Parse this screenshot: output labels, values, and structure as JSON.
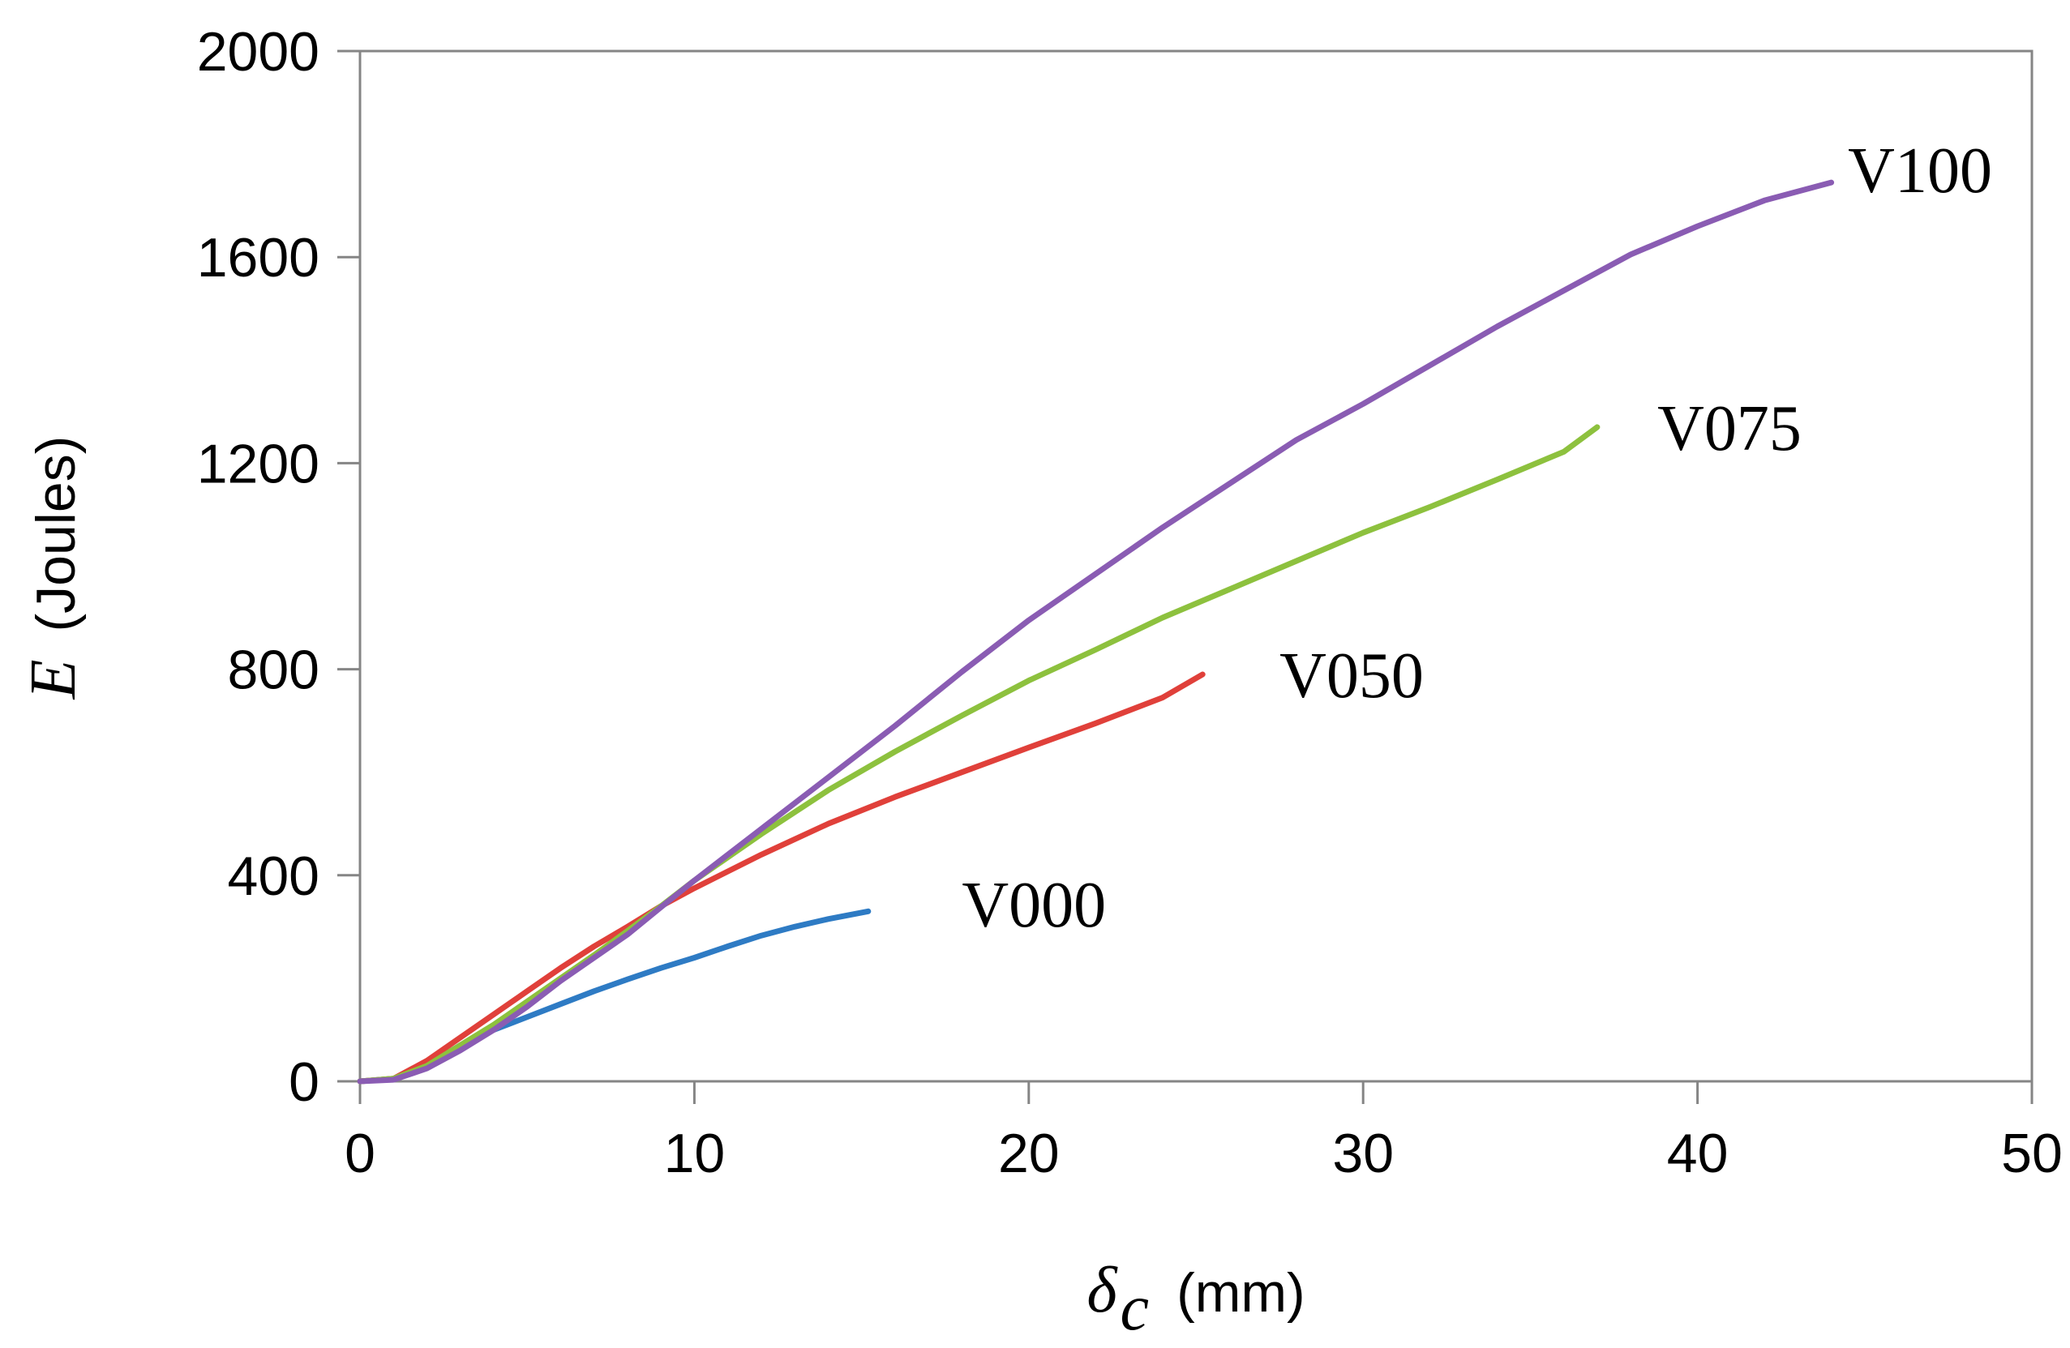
{
  "chart_data": {
    "type": "line",
    "title": "",
    "xlabel": {
      "symbol": "δ",
      "subscript": "c",
      "unit": "(mm)"
    },
    "ylabel": {
      "symbol": "E",
      "unit": "(Joules)"
    },
    "xlim": [
      0,
      50
    ],
    "ylim": [
      0,
      2000
    ],
    "xticks": [
      0,
      10,
      20,
      30,
      40,
      50
    ],
    "yticks": [
      0,
      400,
      800,
      1200,
      1600,
      2000
    ],
    "grid": false,
    "series": [
      {
        "name": "V000",
        "color": "#2E7BC4",
        "x": [
          0,
          1,
          2,
          3,
          4,
          5,
          6,
          7,
          8,
          9,
          10,
          11,
          12,
          13,
          14,
          15.2
        ],
        "y": [
          0,
          5,
          30,
          70,
          100,
          125,
          150,
          175,
          198,
          220,
          240,
          262,
          283,
          300,
          315,
          330
        ]
      },
      {
        "name": "V050",
        "color": "#E0403A",
        "x": [
          0,
          1,
          2,
          3,
          4,
          5,
          6,
          7,
          8,
          9,
          10,
          12,
          14,
          16,
          18,
          20,
          22,
          24,
          25.2
        ],
        "y": [
          0,
          5,
          40,
          85,
          130,
          175,
          220,
          262,
          300,
          340,
          375,
          440,
          500,
          552,
          600,
          648,
          695,
          745,
          790
        ]
      },
      {
        "name": "V075",
        "color": "#8DC13E",
        "x": [
          0,
          1,
          2,
          3,
          4,
          5,
          6,
          7,
          8,
          9,
          10,
          12,
          14,
          16,
          18,
          20,
          22,
          24,
          26,
          28,
          30,
          32,
          34,
          36,
          37
        ],
        "y": [
          0,
          5,
          30,
          70,
          110,
          155,
          200,
          245,
          292,
          340,
          390,
          480,
          565,
          640,
          710,
          778,
          838,
          900,
          955,
          1010,
          1065,
          1115,
          1168,
          1222,
          1270
        ]
      },
      {
        "name": "V100",
        "color": "#8A5CB3",
        "x": [
          0,
          1,
          2,
          3,
          4,
          5,
          6,
          7,
          8,
          9,
          10,
          12,
          14,
          16,
          18,
          20,
          22,
          24,
          26,
          28,
          30,
          32,
          34,
          36,
          38,
          40,
          42,
          44
        ],
        "y": [
          0,
          3,
          25,
          60,
          100,
          145,
          195,
          240,
          285,
          338,
          390,
          490,
          590,
          690,
          795,
          895,
          985,
          1075,
          1160,
          1245,
          1315,
          1390,
          1465,
          1535,
          1605,
          1660,
          1710,
          1745
        ]
      }
    ],
    "annotations": [
      {
        "text": "V000",
        "x": 18.0,
        "y": 345
      },
      {
        "text": "V050",
        "x": 27.5,
        "y": 790
      },
      {
        "text": "V075",
        "x": 38.8,
        "y": 1270
      },
      {
        "text": "V100",
        "x": 44.5,
        "y": 1770
      }
    ]
  }
}
